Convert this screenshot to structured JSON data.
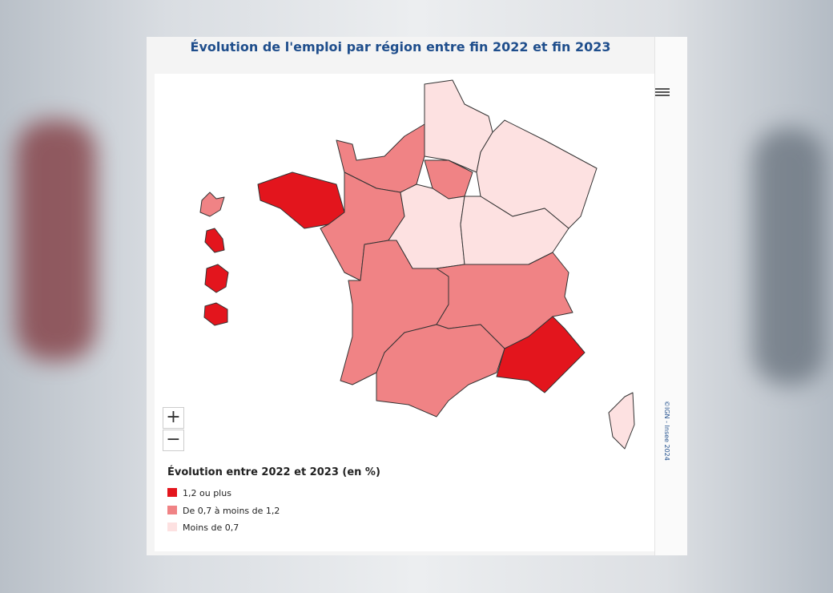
{
  "header": {
    "title": "Évolution de l'emploi par région entre fin 2022 et fin 2023"
  },
  "legend": {
    "title": "Évolution entre 2022 et 2023 (en %)",
    "items": [
      {
        "label": "1,2 ou plus",
        "color": "#e3151d"
      },
      {
        "label": "De 0,7 à moins de 1,2",
        "color": "#f08385"
      },
      {
        "label": "Moins de 0,7",
        "color": "#fde1e1"
      }
    ]
  },
  "zoom": {
    "in": "+",
    "out": "−"
  },
  "credit": "©IGN - Insee 2024"
}
